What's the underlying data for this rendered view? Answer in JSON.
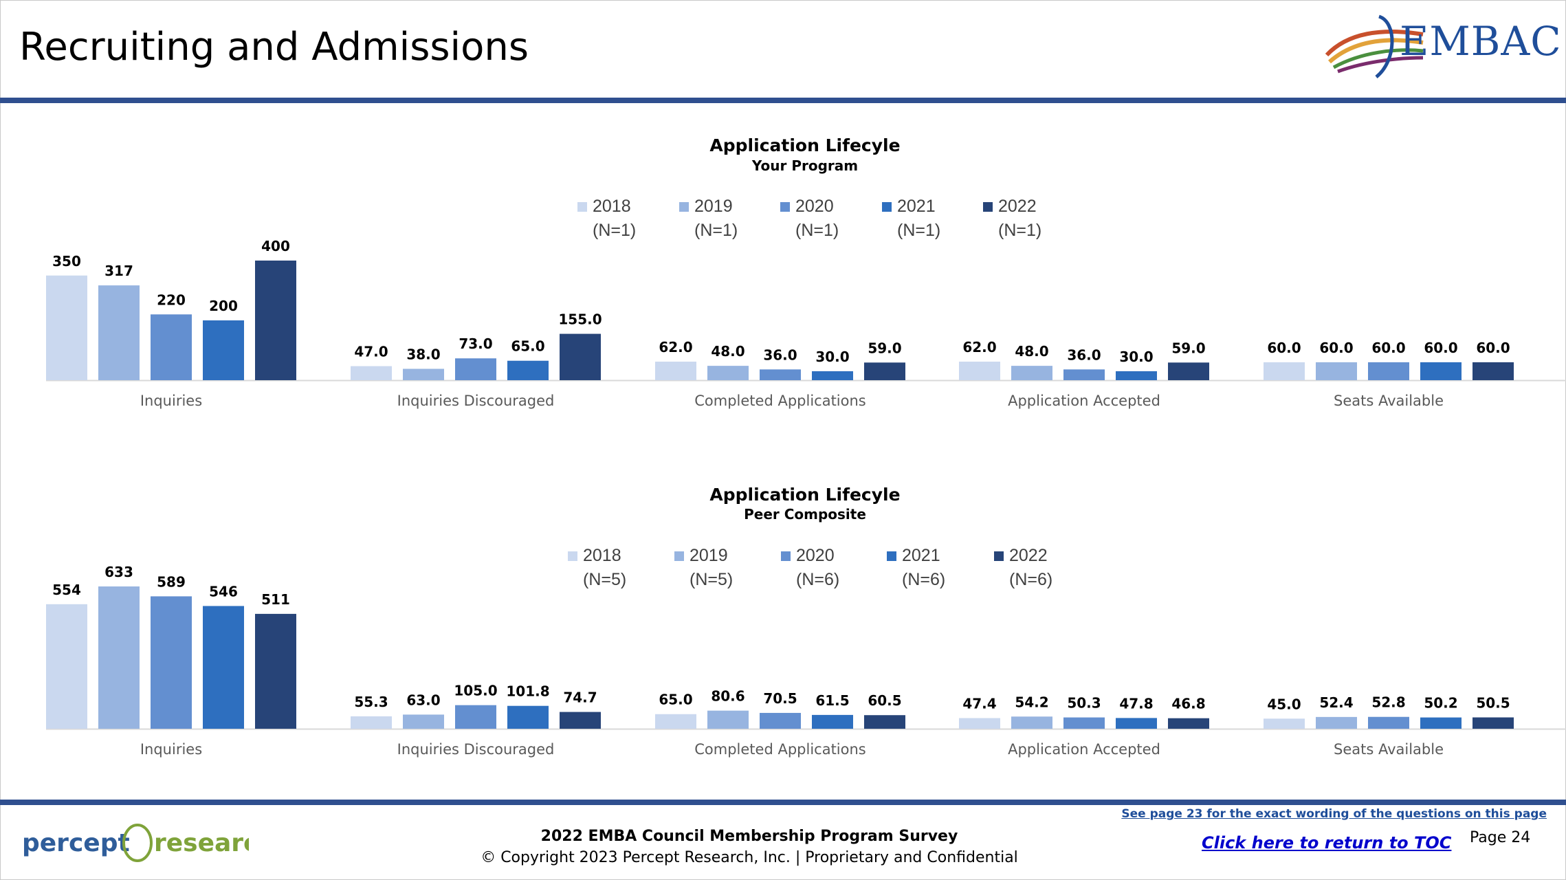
{
  "page": {
    "title": "Recruiting and Admissions",
    "logo_text": "EMBAC",
    "footer_line1": "2022 EMBA Council Membership Program Survey",
    "footer_line2": "© Copyright 2023 Percept Research, Inc. | Proprietary and Confidential",
    "note_link": "See page 23 for the exact wording of the questions on this page",
    "toc_link": "Click here to return to TOC",
    "page_number": "Page 24",
    "percept_logo_text_1": "percept",
    "percept_logo_text_2": "research"
  },
  "colors": {
    "bar_series": [
      "#cad8ef",
      "#97b4e0",
      "#638fd0",
      "#2e6fbf",
      "#274478"
    ],
    "rule": "#2f4f8f",
    "link": "#0000cc"
  },
  "chart_data": [
    {
      "type": "bar",
      "title": "Application Lifecyle",
      "subtitle": "Your Program",
      "legend_position": "top",
      "categories": [
        "Inquiries",
        "Inquiries Discouraged",
        "Completed Applications",
        "Application Accepted",
        "Seats Available"
      ],
      "series": [
        {
          "name": "2018",
          "n": "(N=1)",
          "values": [
            350,
            47.0,
            62.0,
            62.0,
            60.0
          ],
          "labels": [
            "350",
            "47.0",
            "62.0",
            "62.0",
            "60.0"
          ]
        },
        {
          "name": "2019",
          "n": "(N=1)",
          "values": [
            317,
            38.0,
            48.0,
            48.0,
            60.0
          ],
          "labels": [
            "317",
            "38.0",
            "48.0",
            "48.0",
            "60.0"
          ]
        },
        {
          "name": "2020",
          "n": "(N=1)",
          "values": [
            220,
            73.0,
            36.0,
            36.0,
            60.0
          ],
          "labels": [
            "220",
            "73.0",
            "36.0",
            "36.0",
            "60.0"
          ]
        },
        {
          "name": "2021",
          "n": "(N=1)",
          "values": [
            200,
            65.0,
            30.0,
            30.0,
            60.0
          ],
          "labels": [
            "200",
            "65.0",
            "30.0",
            "30.0",
            "60.0"
          ]
        },
        {
          "name": "2022",
          "n": "(N=1)",
          "values": [
            400,
            155.0,
            59.0,
            59.0,
            60.0
          ],
          "labels": [
            "400",
            "155.0",
            "59.0",
            "59.0",
            "60.0"
          ]
        }
      ]
    },
    {
      "type": "bar",
      "title": "Application Lifecyle",
      "subtitle": "Peer Composite",
      "legend_position": "top",
      "categories": [
        "Inquiries",
        "Inquiries Discouraged",
        "Completed Applications",
        "Application Accepted",
        "Seats Available"
      ],
      "series": [
        {
          "name": "2018",
          "n": "(N=5)",
          "values": [
            554,
            55.3,
            65.0,
            47.4,
            45.0
          ],
          "labels": [
            "554",
            "55.3",
            "65.0",
            "47.4",
            "45.0"
          ]
        },
        {
          "name": "2019",
          "n": "(N=5)",
          "values": [
            633,
            63.0,
            80.6,
            54.2,
            52.4
          ],
          "labels": [
            "633",
            "63.0",
            "80.6",
            "54.2",
            "52.4"
          ]
        },
        {
          "name": "2020",
          "n": "(N=6)",
          "values": [
            589,
            105.0,
            70.5,
            50.3,
            52.8
          ],
          "labels": [
            "589",
            "105.0",
            "70.5",
            "50.3",
            "52.8"
          ]
        },
        {
          "name": "2021",
          "n": "(N=6)",
          "values": [
            546,
            101.8,
            61.5,
            47.8,
            50.2
          ],
          "labels": [
            "546",
            "101.8",
            "61.5",
            "47.8",
            "50.2"
          ]
        },
        {
          "name": "2022",
          "n": "(N=6)",
          "values": [
            511,
            74.7,
            60.5,
            46.8,
            50.5
          ],
          "labels": [
            "511",
            "74.7",
            "60.5",
            "46.8",
            "50.5"
          ]
        }
      ]
    }
  ]
}
